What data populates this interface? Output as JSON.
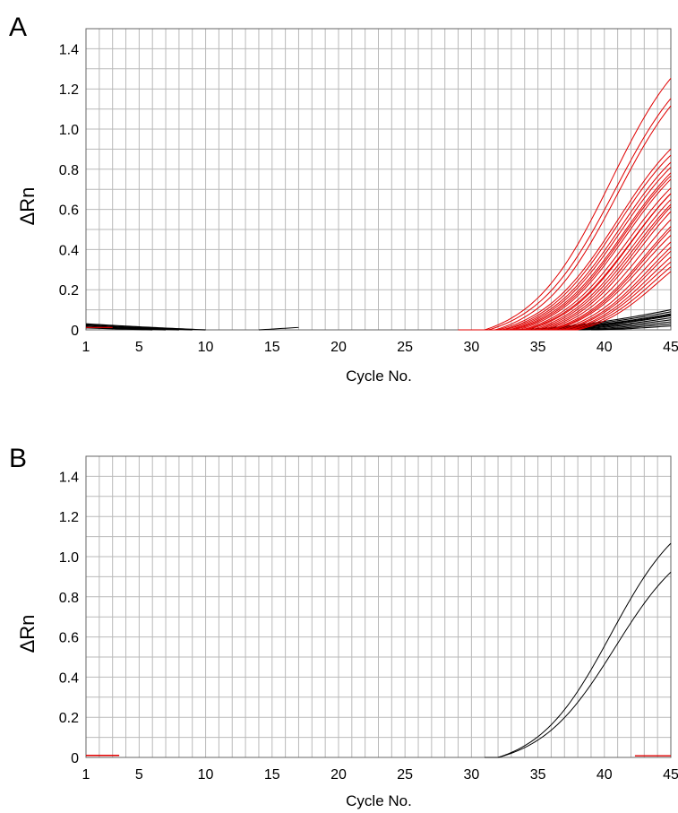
{
  "chart_data": [
    {
      "panel": "A",
      "type": "line",
      "xlabel": "Cycle No.",
      "ylabel": "ΔRn",
      "xlim": [
        1,
        45
      ],
      "ylim": [
        0,
        1.5
      ],
      "xticks": [
        1,
        5,
        10,
        15,
        20,
        25,
        30,
        35,
        40,
        45
      ],
      "yticks": [
        0,
        0.2,
        0.4,
        0.6,
        0.8,
        1.0,
        1.2,
        1.4
      ],
      "grid": true,
      "red_curves": [
        {
          "onset": 31.0,
          "max": 1.62,
          "mid": 40.5,
          "k": 0.33
        },
        {
          "onset": 31.3,
          "max": 1.52,
          "mid": 40.8,
          "k": 0.33
        },
        {
          "onset": 31.8,
          "max": 1.48,
          "mid": 41.0,
          "k": 0.34
        },
        {
          "onset": 32.0,
          "max": 1.2,
          "mid": 41.0,
          "k": 0.34
        },
        {
          "onset": 32.3,
          "max": 1.15,
          "mid": 41.0,
          "k": 0.35
        },
        {
          "onset": 32.5,
          "max": 1.12,
          "mid": 41.2,
          "k": 0.35
        },
        {
          "onset": 32.8,
          "max": 1.1,
          "mid": 41.3,
          "k": 0.35
        },
        {
          "onset": 33.0,
          "max": 1.08,
          "mid": 41.5,
          "k": 0.35
        },
        {
          "onset": 33.2,
          "max": 1.05,
          "mid": 41.5,
          "k": 0.36
        },
        {
          "onset": 33.5,
          "max": 1.04,
          "mid": 41.6,
          "k": 0.36
        },
        {
          "onset": 33.8,
          "max": 1.0,
          "mid": 41.8,
          "k": 0.36
        },
        {
          "onset": 34.0,
          "max": 0.98,
          "mid": 42.0,
          "k": 0.36
        },
        {
          "onset": 34.2,
          "max": 0.97,
          "mid": 42.0,
          "k": 0.37
        },
        {
          "onset": 34.5,
          "max": 0.95,
          "mid": 42.2,
          "k": 0.37
        },
        {
          "onset": 34.8,
          "max": 0.93,
          "mid": 42.3,
          "k": 0.37
        },
        {
          "onset": 35.0,
          "max": 0.92,
          "mid": 42.5,
          "k": 0.38
        },
        {
          "onset": 35.3,
          "max": 0.9,
          "mid": 42.6,
          "k": 0.38
        },
        {
          "onset": 35.5,
          "max": 0.86,
          "mid": 42.8,
          "k": 0.38
        },
        {
          "onset": 35.8,
          "max": 0.83,
          "mid": 43.0,
          "k": 0.38
        },
        {
          "onset": 36.0,
          "max": 0.8,
          "mid": 43.0,
          "k": 0.39
        },
        {
          "onset": 36.2,
          "max": 0.76,
          "mid": 43.0,
          "k": 0.39
        },
        {
          "onset": 36.5,
          "max": 0.72,
          "mid": 43.2,
          "k": 0.4
        },
        {
          "onset": 36.8,
          "max": 0.7,
          "mid": 43.4,
          "k": 0.4
        },
        {
          "onset": 37.0,
          "max": 0.68,
          "mid": 43.5,
          "k": 0.4
        },
        {
          "onset": 37.3,
          "max": 0.63,
          "mid": 43.5,
          "k": 0.41
        },
        {
          "onset": 37.5,
          "max": 0.6,
          "mid": 43.6,
          "k": 0.41
        },
        {
          "onset": 37.8,
          "max": 0.58,
          "mid": 43.8,
          "k": 0.41
        },
        {
          "onset": 38.0,
          "max": 0.55,
          "mid": 44.0,
          "k": 0.42
        }
      ],
      "black_curves": [
        {
          "onset": 33.0,
          "end_y": 0.1
        },
        {
          "onset": 33.5,
          "end_y": 0.09
        },
        {
          "onset": 34.0,
          "end_y": 0.08
        },
        {
          "onset": 34.5,
          "end_y": 0.075
        },
        {
          "onset": 35.0,
          "end_y": 0.07
        },
        {
          "onset": 35.5,
          "end_y": 0.06
        },
        {
          "onset": 36.0,
          "end_y": 0.05
        },
        {
          "onset": 37.0,
          "end_y": 0.04
        },
        {
          "onset": 38.0,
          "end_y": 0.03
        },
        {
          "onset": 39.0,
          "end_y": 0.02
        }
      ],
      "early_noise": [
        {
          "start_y": 0.03,
          "end_x": 10
        },
        {
          "start_y": 0.025,
          "end_x": 9
        },
        {
          "start_y": 0.02,
          "end_x": 8
        },
        {
          "start_y": 0.015,
          "end_x": 7
        },
        {
          "start_y": 0.01,
          "end_x": 6
        }
      ],
      "bump_15": {
        "start_x": 14,
        "end_x": 17,
        "peak_y": 0.012
      }
    },
    {
      "panel": "B",
      "type": "line",
      "xlabel": "Cycle No.",
      "ylabel": "ΔRn",
      "xlim": [
        1,
        45
      ],
      "ylim": [
        0,
        1.5
      ],
      "xticks": [
        1,
        5,
        10,
        15,
        20,
        25,
        30,
        35,
        40,
        45
      ],
      "yticks": [
        0,
        0.2,
        0.4,
        0.6,
        0.8,
        1.0,
        1.2,
        1.4
      ],
      "grid": true,
      "black_curves": [
        {
          "onset": 32.0,
          "max": 1.35,
          "mid": 40.5,
          "k": 0.36
        },
        {
          "onset": 32.0,
          "max": 1.2,
          "mid": 40.8,
          "k": 0.35
        }
      ],
      "red_marks": [
        {
          "x": [
            1,
            3.5
          ],
          "y": 0.01
        },
        {
          "x": [
            42.3,
            45
          ],
          "y": 0.008
        }
      ]
    }
  ]
}
